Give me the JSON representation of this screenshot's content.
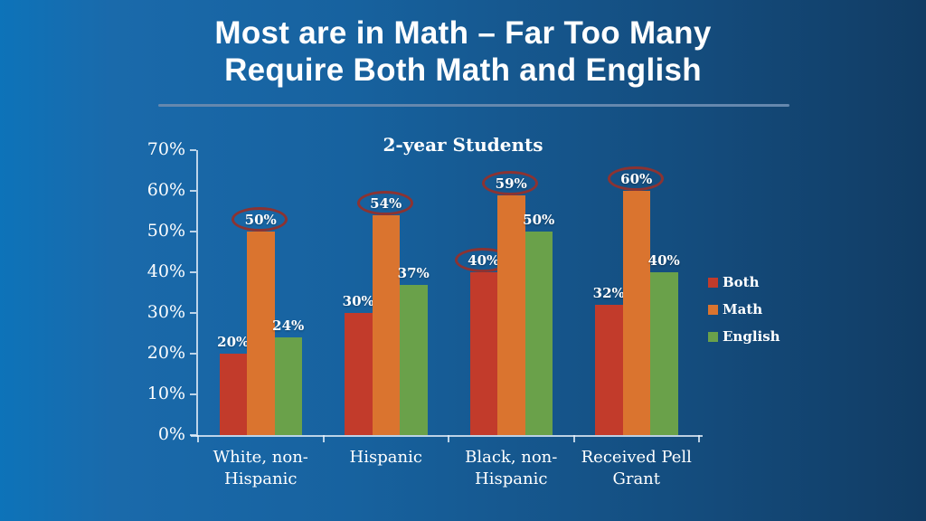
{
  "slide": {
    "title_line1": "Most are in Math – Far Too Many",
    "title_line2": "Require Both Math and English"
  },
  "chart_data": {
    "type": "bar",
    "title": "2-year Students",
    "categories": [
      "White, non-Hispanic",
      "Hispanic",
      "Black, non-Hispanic",
      "Received Pell Grant"
    ],
    "series": [
      {
        "name": "Both",
        "color": "#c23b2b",
        "values": [
          20,
          30,
          40,
          32
        ],
        "circled": [
          false,
          false,
          true,
          false
        ]
      },
      {
        "name": "Math",
        "color": "#da742f",
        "values": [
          50,
          54,
          59,
          60
        ],
        "circled": [
          true,
          true,
          true,
          true
        ]
      },
      {
        "name": "English",
        "color": "#6aa14a",
        "values": [
          24,
          37,
          50,
          40
        ],
        "circled": [
          false,
          false,
          false,
          false
        ]
      }
    ],
    "value_suffix": "%",
    "xlabel": "",
    "ylabel": "",
    "ylim": [
      0,
      70
    ],
    "yticks": [
      "0%",
      "10%",
      "20%",
      "30%",
      "40%",
      "50%",
      "60%",
      "70%"
    ],
    "grid": false,
    "legend_position": "right",
    "annotation_circle_color": "#8c3332",
    "background_colors": [
      "#0d73b9",
      "#113c64"
    ],
    "text_color": "#ffffff"
  }
}
